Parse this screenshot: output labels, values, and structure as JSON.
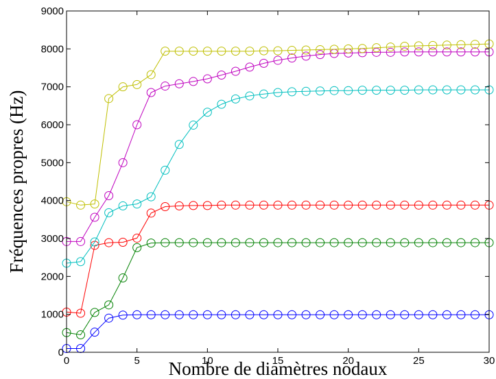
{
  "chart_data": {
    "type": "line",
    "title": "",
    "xlabel": "Nombre de diamètres nodaux",
    "ylabel": "Fréquences propres (Hz)",
    "xlim": [
      0,
      30
    ],
    "ylim": [
      0,
      9000
    ],
    "xticks": [
      0,
      5,
      10,
      15,
      20,
      25,
      30
    ],
    "yticks": [
      0,
      1000,
      2000,
      3000,
      4000,
      5000,
      6000,
      7000,
      8000,
      9000
    ],
    "grid": false,
    "legend": "none",
    "marker": "circle",
    "x": [
      0,
      1,
      2,
      3,
      4,
      5,
      6,
      7,
      8,
      9,
      10,
      11,
      12,
      13,
      14,
      15,
      16,
      17,
      18,
      19,
      20,
      21,
      22,
      23,
      24,
      25,
      26,
      27,
      28,
      29,
      30
    ],
    "series": [
      {
        "color": "#0000ff",
        "values": [
          100,
          100,
          530,
          900,
          980,
          990,
          990,
          990,
          990,
          990,
          990,
          990,
          990,
          990,
          990,
          990,
          990,
          990,
          990,
          990,
          990,
          990,
          990,
          990,
          990,
          990,
          990,
          990,
          990,
          990,
          990
        ]
      },
      {
        "color": "#008000",
        "values": [
          520,
          460,
          1050,
          1250,
          1960,
          2760,
          2880,
          2890,
          2890,
          2890,
          2890,
          2890,
          2890,
          2890,
          2890,
          2890,
          2890,
          2890,
          2890,
          2890,
          2890,
          2890,
          2890,
          2890,
          2890,
          2890,
          2890,
          2890,
          2890,
          2890,
          2890
        ]
      },
      {
        "color": "#ff0000",
        "values": [
          1060,
          1030,
          2820,
          2890,
          2900,
          3010,
          3670,
          3840,
          3860,
          3870,
          3870,
          3880,
          3880,
          3880,
          3880,
          3880,
          3880,
          3880,
          3880,
          3880,
          3880,
          3880,
          3880,
          3880,
          3880,
          3880,
          3880,
          3880,
          3880,
          3880,
          3880
        ]
      },
      {
        "color": "#00bfbf",
        "values": [
          2350,
          2390,
          2910,
          3680,
          3860,
          3910,
          4100,
          4800,
          5480,
          5990,
          6330,
          6540,
          6680,
          6760,
          6810,
          6850,
          6870,
          6880,
          6890,
          6900,
          6900,
          6910,
          6910,
          6910,
          6910,
          6920,
          6920,
          6920,
          6920,
          6920,
          6920
        ]
      },
      {
        "color": "#bf00bf",
        "values": [
          2920,
          2920,
          3560,
          4130,
          5000,
          6000,
          6850,
          7020,
          7080,
          7140,
          7210,
          7310,
          7410,
          7520,
          7620,
          7700,
          7760,
          7810,
          7850,
          7880,
          7890,
          7900,
          7910,
          7910,
          7920,
          7920,
          7920,
          7920,
          7920,
          7920,
          7920
        ]
      },
      {
        "color": "#bfbf00",
        "values": [
          3970,
          3880,
          3910,
          6690,
          7000,
          7060,
          7320,
          7940,
          7940,
          7940,
          7940,
          7940,
          7940,
          7940,
          7950,
          7950,
          7960,
          7970,
          7980,
          7990,
          8000,
          8010,
          8030,
          8050,
          8070,
          8080,
          8090,
          8100,
          8110,
          8120,
          8130
        ]
      }
    ]
  }
}
